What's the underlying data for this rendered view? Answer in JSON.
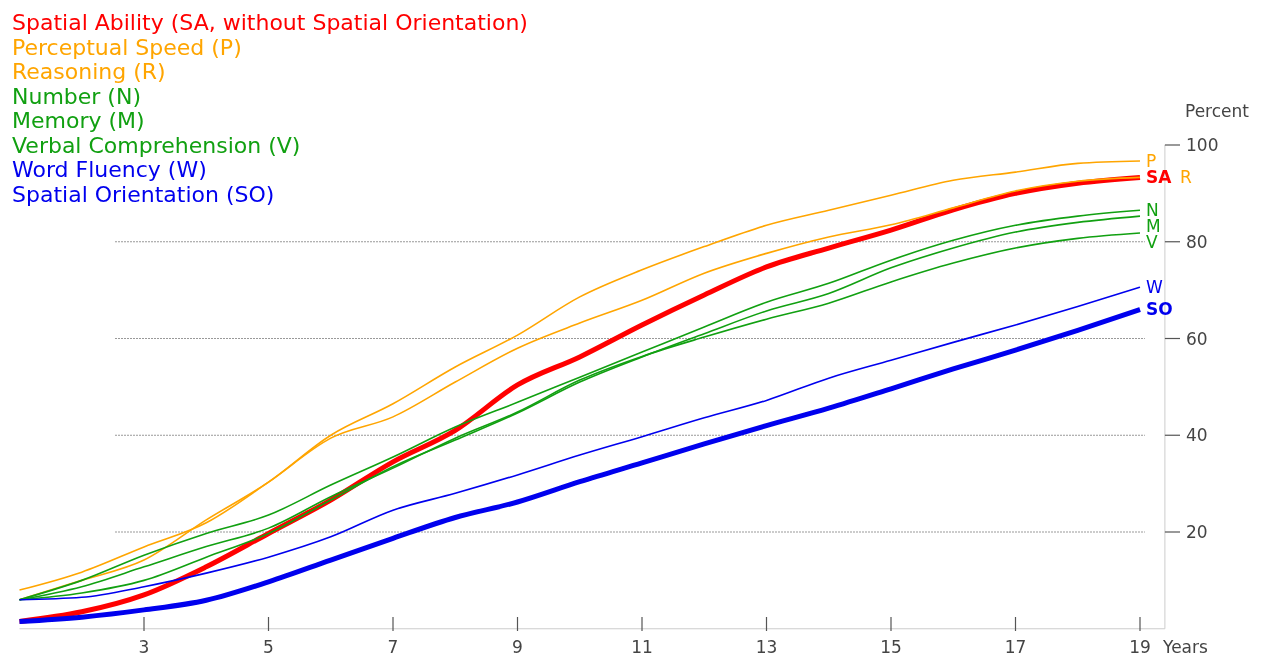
{
  "chart_data": {
    "type": "line",
    "xlabel": "Years",
    "ylabel": "Percent",
    "x": [
      1,
      2,
      3,
      4,
      5,
      6,
      7,
      8,
      9,
      10,
      11,
      12,
      13,
      14,
      15,
      16,
      17,
      18,
      19
    ],
    "xlim": [
      1,
      19.4
    ],
    "xticks": [
      3,
      5,
      7,
      9,
      11,
      13,
      15,
      17,
      19
    ],
    "ylim": [
      0,
      100
    ],
    "yticks": [
      20,
      40,
      60,
      80,
      100
    ],
    "grid": "y",
    "marker": "none",
    "line_style": "solid",
    "series": [
      {
        "name": "SA",
        "color": "#ff0000",
        "values": [
          1.5,
          3.5,
          7,
          12.8,
          19.7,
          26.6,
          34.5,
          41,
          50.4,
          56.2,
          62.8,
          69,
          74.8,
          78.7,
          82.4,
          86.6,
          90,
          92.1,
          93.3
        ]
      },
      {
        "name": "P",
        "color": "#ffa500",
        "values": [
          6,
          10,
          14.2,
          22.5,
          30.3,
          40,
          46.5,
          54.1,
          60.7,
          68.6,
          74.2,
          79,
          83.4,
          86.5,
          89.6,
          92.7,
          94.4,
          96.2,
          96.7
        ]
      },
      {
        "name": "R",
        "color": "#ffa500",
        "values": [
          8,
          11.7,
          16.9,
          21.9,
          30.3,
          39.4,
          43.8,
          51,
          58,
          63.2,
          67.9,
          73.5,
          77.6,
          81,
          83.5,
          87,
          90.5,
          92.5,
          93.3
        ]
      },
      {
        "name": "N",
        "color": "#11a011",
        "values": [
          6,
          10,
          15.2,
          19.7,
          23.5,
          29.7,
          35.5,
          41.7,
          46.8,
          52,
          57.2,
          62.4,
          67.5,
          71.4,
          76.2,
          80.3,
          83.4,
          85.3,
          86.5
        ]
      },
      {
        "name": "M",
        "color": "#11a011",
        "values": [
          6,
          7.4,
          10,
          14.8,
          19.7,
          26.6,
          33.5,
          39,
          44.6,
          51,
          56.2,
          61,
          65.7,
          69.3,
          74.6,
          78.7,
          82,
          84,
          85.3
        ]
      },
      {
        "name": "V",
        "color": "#11a011",
        "values": [
          6,
          8.7,
          12.8,
          17,
          20.8,
          27.3,
          33.2,
          39.4,
          44.8,
          51.4,
          56.3,
          60.3,
          64,
          67.3,
          71.7,
          75.6,
          78.7,
          80.7,
          81.8
        ]
      },
      {
        "name": "W",
        "color": "#0000ee",
        "values": [
          6,
          6.5,
          8.7,
          11.5,
          14.8,
          19,
          24.5,
          28,
          31.8,
          35.9,
          39.7,
          43.6,
          47.2,
          51.8,
          55.5,
          59.2,
          62.8,
          66.6,
          70.6
        ]
      },
      {
        "name": "SO",
        "color": "#0000ee",
        "values": [
          1.5,
          2.4,
          3.9,
          5.9,
          9.7,
          14.2,
          18.7,
          23,
          26.2,
          30.4,
          34.3,
          38.2,
          42,
          45.6,
          49.6,
          53.7,
          57.6,
          61.7,
          66
        ]
      }
    ],
    "annotations": [
      "Spatial Ability (SA, without Spatial Orientation)",
      "Perceptual Speed (P)",
      "Reasoning (R)",
      "Number (N)",
      "Memory (M)",
      "Verbal Comprehension (V)",
      "Word Fluency (W)",
      "Spatial Orientation (SO)"
    ]
  }
}
